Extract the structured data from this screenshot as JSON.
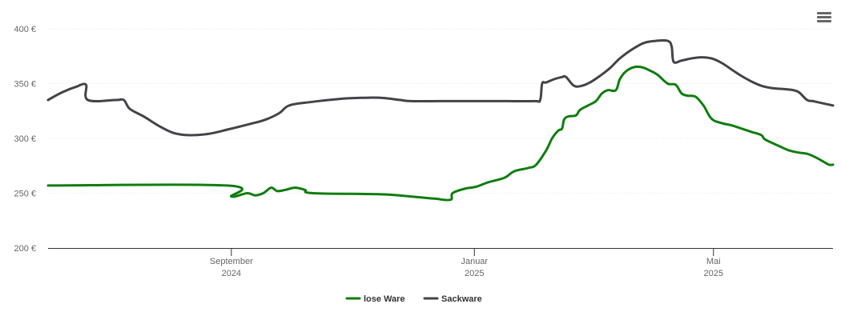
{
  "chart_data": {
    "type": "line",
    "ylim": [
      200,
      400
    ],
    "y_ticks": [
      {
        "value": 400,
        "label": "400 €"
      },
      {
        "value": 350,
        "label": "350 €"
      },
      {
        "value": 300,
        "label": "300 €"
      },
      {
        "value": 250,
        "label": "250 €"
      },
      {
        "value": 200,
        "label": "200 €"
      }
    ],
    "x_range": [
      "2024-06-01",
      "2025-06-30"
    ],
    "x_ticks": [
      {
        "date": "2024-09-01",
        "label": "September",
        "sublabel": "2024"
      },
      {
        "date": "2025-01-01",
        "label": "Januar",
        "sublabel": "2025"
      },
      {
        "date": "2025-05-01",
        "label": "Mai",
        "sublabel": "2025"
      }
    ],
    "grid": true,
    "legend_position": "bottom-center",
    "series": [
      {
        "name": "lose Ware",
        "color": "#0f7d0f",
        "points": [
          [
            "2024-06-01",
            257
          ],
          [
            "2024-08-30",
            257
          ],
          [
            "2024-09-01",
            247
          ],
          [
            "2024-09-09",
            250
          ],
          [
            "2024-09-13",
            248
          ],
          [
            "2024-09-17",
            250
          ],
          [
            "2024-09-21",
            255
          ],
          [
            "2024-09-24",
            252
          ],
          [
            "2024-09-28",
            253
          ],
          [
            "2024-10-03",
            255
          ],
          [
            "2024-10-08",
            253
          ],
          [
            "2024-10-12",
            250
          ],
          [
            "2024-11-15",
            249
          ],
          [
            "2024-11-30",
            247
          ],
          [
            "2024-12-12",
            245
          ],
          [
            "2024-12-20",
            244
          ],
          [
            "2024-12-21",
            250
          ],
          [
            "2024-12-27",
            254
          ],
          [
            "2025-01-02",
            256
          ],
          [
            "2025-01-08",
            260
          ],
          [
            "2025-01-16",
            264
          ],
          [
            "2025-01-21",
            270
          ],
          [
            "2025-01-28",
            273
          ],
          [
            "2025-02-01",
            276
          ],
          [
            "2025-02-06",
            289
          ],
          [
            "2025-02-09",
            300
          ],
          [
            "2025-02-12",
            307
          ],
          [
            "2025-02-14",
            309
          ],
          [
            "2025-02-15",
            317
          ],
          [
            "2025-02-17",
            320
          ],
          [
            "2025-02-21",
            321
          ],
          [
            "2025-02-23",
            326
          ],
          [
            "2025-02-27",
            330
          ],
          [
            "2025-03-03",
            334
          ],
          [
            "2025-03-06",
            341
          ],
          [
            "2025-03-09",
            344
          ],
          [
            "2025-03-13",
            344
          ],
          [
            "2025-03-15",
            354
          ],
          [
            "2025-03-18",
            361
          ],
          [
            "2025-03-22",
            365
          ],
          [
            "2025-03-26",
            365
          ],
          [
            "2025-03-30",
            362
          ],
          [
            "2025-04-03",
            358
          ],
          [
            "2025-04-08",
            350
          ],
          [
            "2025-04-12",
            349
          ],
          [
            "2025-04-15",
            341
          ],
          [
            "2025-04-18",
            339
          ],
          [
            "2025-04-22",
            338
          ],
          [
            "2025-04-26",
            330
          ],
          [
            "2025-04-30",
            318
          ],
          [
            "2025-05-05",
            314
          ],
          [
            "2025-05-10",
            312
          ],
          [
            "2025-05-15",
            309
          ],
          [
            "2025-05-20",
            306
          ],
          [
            "2025-05-25",
            303
          ],
          [
            "2025-05-27",
            299
          ],
          [
            "2025-06-03",
            293
          ],
          [
            "2025-06-08",
            289
          ],
          [
            "2025-06-13",
            287
          ],
          [
            "2025-06-17",
            286
          ],
          [
            "2025-06-21",
            283
          ],
          [
            "2025-06-25",
            279
          ],
          [
            "2025-06-28",
            276
          ],
          [
            "2025-06-30",
            276
          ]
        ]
      },
      {
        "name": "Sackware",
        "color": "#434348",
        "points": [
          [
            "2024-06-01",
            335
          ],
          [
            "2024-06-08",
            342
          ],
          [
            "2024-06-15",
            347
          ],
          [
            "2024-06-20",
            349
          ],
          [
            "2024-06-21",
            335
          ],
          [
            "2024-07-05",
            335
          ],
          [
            "2024-07-09",
            335
          ],
          [
            "2024-07-12",
            327
          ],
          [
            "2024-07-19",
            320
          ],
          [
            "2024-07-27",
            311
          ],
          [
            "2024-08-03",
            305
          ],
          [
            "2024-08-10",
            303
          ],
          [
            "2024-08-20",
            304
          ],
          [
            "2024-08-30",
            308
          ],
          [
            "2024-09-10",
            313
          ],
          [
            "2024-09-18",
            317
          ],
          [
            "2024-09-25",
            323
          ],
          [
            "2024-09-30",
            330
          ],
          [
            "2024-10-10",
            333
          ],
          [
            "2024-10-25",
            336
          ],
          [
            "2024-11-05",
            337
          ],
          [
            "2024-11-15",
            337
          ],
          [
            "2024-11-25",
            335
          ],
          [
            "2024-11-30",
            334
          ],
          [
            "2024-12-15",
            334
          ],
          [
            "2025-01-01",
            334
          ],
          [
            "2025-01-15",
            334
          ],
          [
            "2025-01-31",
            334
          ],
          [
            "2025-02-03",
            335
          ],
          [
            "2025-02-04",
            350
          ],
          [
            "2025-02-06",
            351
          ],
          [
            "2025-02-10",
            354
          ],
          [
            "2025-02-14",
            356
          ],
          [
            "2025-02-16",
            356
          ],
          [
            "2025-02-20",
            348
          ],
          [
            "2025-02-24",
            348
          ],
          [
            "2025-02-28",
            351
          ],
          [
            "2025-03-05",
            357
          ],
          [
            "2025-03-10",
            364
          ],
          [
            "2025-03-15",
            373
          ],
          [
            "2025-03-21",
            381
          ],
          [
            "2025-03-27",
            387
          ],
          [
            "2025-04-02",
            389
          ],
          [
            "2025-04-08",
            389
          ],
          [
            "2025-04-10",
            384
          ],
          [
            "2025-04-11",
            370
          ],
          [
            "2025-04-15",
            371
          ],
          [
            "2025-04-20",
            373
          ],
          [
            "2025-04-25",
            374
          ],
          [
            "2025-04-30",
            373
          ],
          [
            "2025-05-05",
            369
          ],
          [
            "2025-05-10",
            363
          ],
          [
            "2025-05-15",
            357
          ],
          [
            "2025-05-20",
            352
          ],
          [
            "2025-05-25",
            348
          ],
          [
            "2025-05-30",
            346
          ],
          [
            "2025-06-05",
            345
          ],
          [
            "2025-06-10",
            344
          ],
          [
            "2025-06-13",
            342
          ],
          [
            "2025-06-17",
            335
          ],
          [
            "2025-06-20",
            334
          ],
          [
            "2025-06-25",
            332
          ],
          [
            "2025-06-30",
            330
          ]
        ]
      }
    ]
  }
}
